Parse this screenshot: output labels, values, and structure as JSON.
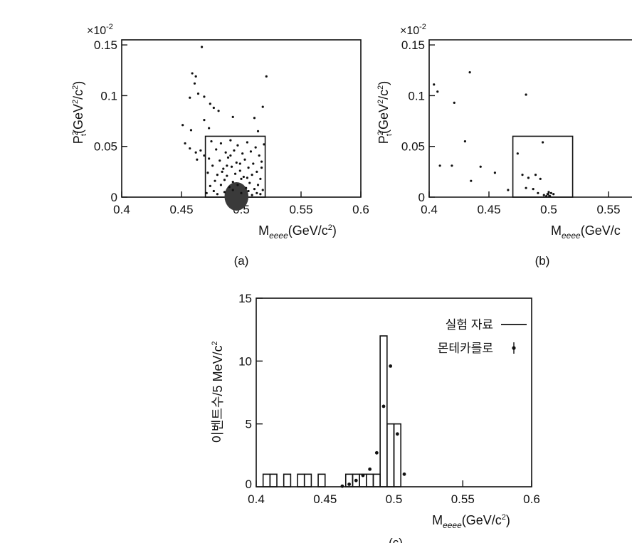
{
  "chart_data": [
    {
      "panel": "a",
      "type": "scatter",
      "caption": "(a)",
      "xlabel_main": "M",
      "xlabel_sub": "eeee",
      "xlabel_unit": "(GeV/c",
      "xlabel_sup": "2",
      "xlabel_close": ")",
      "ylabel": "P",
      "ylabel_sub": "t",
      "ylabel_sup": "2",
      "ylabel_rest": "(GeV",
      "ylabel_sup2": "2",
      "ylabel_rest2": "/c",
      "ylabel_sup3": "2",
      "ylabel_close": ")",
      "ymultiplier": "×10",
      "ymultiplier_exp": "-2",
      "xlim": [
        0.4,
        0.6
      ],
      "ylim": [
        0,
        0.155
      ],
      "xticks": [
        "0.4",
        "0.45",
        "0.5",
        "0.55",
        "0.6"
      ],
      "yticks": [
        "0",
        "0.05",
        "0.1",
        "0.15"
      ],
      "signal_box": {
        "x": [
          0.47,
          0.52
        ],
        "y": [
          0,
          0.06
        ]
      },
      "points": [
        [
          0.467,
          0.148
        ],
        [
          0.459,
          0.122
        ],
        [
          0.462,
          0.119
        ],
        [
          0.461,
          0.112
        ],
        [
          0.457,
          0.098
        ],
        [
          0.464,
          0.102
        ],
        [
          0.469,
          0.099
        ],
        [
          0.521,
          0.119
        ],
        [
          0.518,
          0.089
        ],
        [
          0.474,
          0.092
        ],
        [
          0.477,
          0.088
        ],
        [
          0.481,
          0.085
        ],
        [
          0.493,
          0.079
        ],
        [
          0.469,
          0.076
        ],
        [
          0.458,
          0.066
        ],
        [
          0.451,
          0.071
        ],
        [
          0.473,
          0.068
        ],
        [
          0.514,
          0.065
        ],
        [
          0.511,
          0.078
        ],
        [
          0.453,
          0.053
        ],
        [
          0.457,
          0.048
        ],
        [
          0.462,
          0.044
        ],
        [
          0.466,
          0.046
        ],
        [
          0.469,
          0.041
        ],
        [
          0.463,
          0.037
        ],
        [
          0.519,
          0.052
        ],
        [
          0.517,
          0.035
        ],
        [
          0.475,
          0.055
        ],
        [
          0.483,
          0.053
        ],
        [
          0.491,
          0.056
        ],
        [
          0.497,
          0.051
        ],
        [
          0.505,
          0.054
        ],
        [
          0.512,
          0.049
        ],
        [
          0.479,
          0.047
        ],
        [
          0.487,
          0.044
        ],
        [
          0.494,
          0.046
        ],
        [
          0.501,
          0.043
        ],
        [
          0.508,
          0.045
        ],
        [
          0.515,
          0.041
        ],
        [
          0.473,
          0.038
        ],
        [
          0.482,
          0.036
        ],
        [
          0.489,
          0.039
        ],
        [
          0.496,
          0.034
        ],
        [
          0.503,
          0.037
        ],
        [
          0.51,
          0.033
        ],
        [
          0.517,
          0.029
        ],
        [
          0.476,
          0.031
        ],
        [
          0.485,
          0.028
        ],
        [
          0.492,
          0.03
        ],
        [
          0.499,
          0.026
        ],
        [
          0.506,
          0.029
        ],
        [
          0.513,
          0.025
        ],
        [
          0.472,
          0.024
        ],
        [
          0.48,
          0.022
        ],
        [
          0.488,
          0.021
        ],
        [
          0.495,
          0.023
        ],
        [
          0.502,
          0.02
        ],
        [
          0.509,
          0.022
        ],
        [
          0.516,
          0.018
        ],
        [
          0.478,
          0.016
        ],
        [
          0.486,
          0.017
        ],
        [
          0.493,
          0.015
        ],
        [
          0.5,
          0.018
        ],
        [
          0.507,
          0.014
        ],
        [
          0.514,
          0.012
        ],
        [
          0.474,
          0.011
        ],
        [
          0.483,
          0.012
        ],
        [
          0.49,
          0.01
        ],
        [
          0.497,
          0.012
        ],
        [
          0.504,
          0.009
        ],
        [
          0.511,
          0.008
        ],
        [
          0.518,
          0.007
        ],
        [
          0.477,
          0.006
        ],
        [
          0.486,
          0.005
        ],
        [
          0.493,
          0.007
        ],
        [
          0.5,
          0.004
        ],
        [
          0.506,
          0.006
        ],
        [
          0.513,
          0.004
        ],
        [
          0.48,
          0.003
        ],
        [
          0.509,
          0.002
        ],
        [
          0.516,
          0.003
        ],
        [
          0.471,
          0.004
        ],
        [
          0.491,
          0.041
        ],
        [
          0.484,
          0.025
        ],
        [
          0.499,
          0.033
        ],
        [
          0.505,
          0.019
        ],
        [
          0.488,
          0.031
        ]
      ],
      "dense_core": {
        "x": [
          0.486,
          0.506
        ],
        "y": [
          0,
          0.014
        ]
      }
    },
    {
      "panel": "b",
      "type": "scatter",
      "caption": "(b)",
      "xlabel_main": "M",
      "xlabel_sub": "eeee",
      "xlabel_unit": "(GeV/c",
      "ylabel": "P",
      "ylabel_sub": "t",
      "ylabel_sup": "2",
      "ylabel_rest": "(GeV",
      "ylabel_sup2": "2",
      "ylabel_rest2": "/c",
      "ylabel_sup3": "2",
      "ylabel_close": ")",
      "ymultiplier": "×10",
      "ymultiplier_exp": "-2",
      "xlim": [
        0.4,
        0.6
      ],
      "ylim": [
        0,
        0.155
      ],
      "xticks": [
        "0.4",
        "0.45",
        "0.5",
        "0.55"
      ],
      "yticks": [
        "0",
        "0.05",
        "0.1",
        "0.15"
      ],
      "signal_box": {
        "x": [
          0.47,
          0.52
        ],
        "y": [
          0,
          0.06
        ]
      },
      "points": [
        [
          0.404,
          0.111
        ],
        [
          0.407,
          0.104
        ],
        [
          0.434,
          0.123
        ],
        [
          0.421,
          0.093
        ],
        [
          0.481,
          0.101
        ],
        [
          0.43,
          0.055
        ],
        [
          0.409,
          0.031
        ],
        [
          0.419,
          0.031
        ],
        [
          0.435,
          0.016
        ],
        [
          0.443,
          0.03
        ],
        [
          0.455,
          0.024
        ],
        [
          0.466,
          0.007
        ],
        [
          0.474,
          0.043
        ],
        [
          0.478,
          0.022
        ],
        [
          0.483,
          0.019
        ],
        [
          0.489,
          0.022
        ],
        [
          0.495,
          0.054
        ],
        [
          0.493,
          0.018
        ],
        [
          0.487,
          0.008
        ],
        [
          0.491,
          0.004
        ],
        [
          0.496,
          0.002
        ],
        [
          0.499,
          0.003
        ],
        [
          0.501,
          0.001
        ],
        [
          0.502,
          0.004
        ],
        [
          0.498,
          0.001
        ],
        [
          0.504,
          0.003
        ],
        [
          0.5,
          0.005
        ],
        [
          0.481,
          0.009
        ]
      ]
    },
    {
      "panel": "c",
      "type": "histogram",
      "caption": "(c)",
      "xlabel_main": "M",
      "xlabel_sub": "eeee",
      "xlabel_unit": "(GeV/c",
      "xlabel_sup": "2",
      "xlabel_close": ")",
      "ylabel": "이벤트수/5 MeV/c",
      "ylabel_sup": "2",
      "xlim": [
        0.4,
        0.6
      ],
      "ylim": [
        0,
        15
      ],
      "xticks": [
        "0.4",
        "0.45",
        "0.5",
        "0.55",
        "0.6"
      ],
      "yticks": [
        "0",
        "5",
        "10",
        "15"
      ],
      "bin_width": 0.005,
      "bins": [
        {
          "x": 0.4,
          "count": 0
        },
        {
          "x": 0.405,
          "count": 1
        },
        {
          "x": 0.41,
          "count": 1
        },
        {
          "x": 0.415,
          "count": 0
        },
        {
          "x": 0.42,
          "count": 1
        },
        {
          "x": 0.425,
          "count": 0
        },
        {
          "x": 0.43,
          "count": 1
        },
        {
          "x": 0.435,
          "count": 1
        },
        {
          "x": 0.44,
          "count": 0
        },
        {
          "x": 0.445,
          "count": 1
        },
        {
          "x": 0.45,
          "count": 0
        },
        {
          "x": 0.455,
          "count": 0
        },
        {
          "x": 0.46,
          "count": 0
        },
        {
          "x": 0.465,
          "count": 1
        },
        {
          "x": 0.47,
          "count": 1
        },
        {
          "x": 0.475,
          "count": 1
        },
        {
          "x": 0.48,
          "count": 1
        },
        {
          "x": 0.485,
          "count": 1
        },
        {
          "x": 0.49,
          "count": 12
        },
        {
          "x": 0.495,
          "count": 5
        },
        {
          "x": 0.5,
          "count": 5
        },
        {
          "x": 0.505,
          "count": 0
        }
      ],
      "mc_points": [
        [
          0.4625,
          0.05
        ],
        [
          0.4675,
          0.2
        ],
        [
          0.4725,
          0.5
        ],
        [
          0.4775,
          0.9
        ],
        [
          0.4825,
          1.4
        ],
        [
          0.4875,
          2.7
        ],
        [
          0.4925,
          6.4
        ],
        [
          0.4975,
          9.6
        ],
        [
          0.5025,
          4.2
        ],
        [
          0.5075,
          1.0
        ]
      ],
      "legend": {
        "data_label": "실험 자료",
        "mc_label": "몬테카를로",
        "position": "top-right"
      }
    }
  ]
}
